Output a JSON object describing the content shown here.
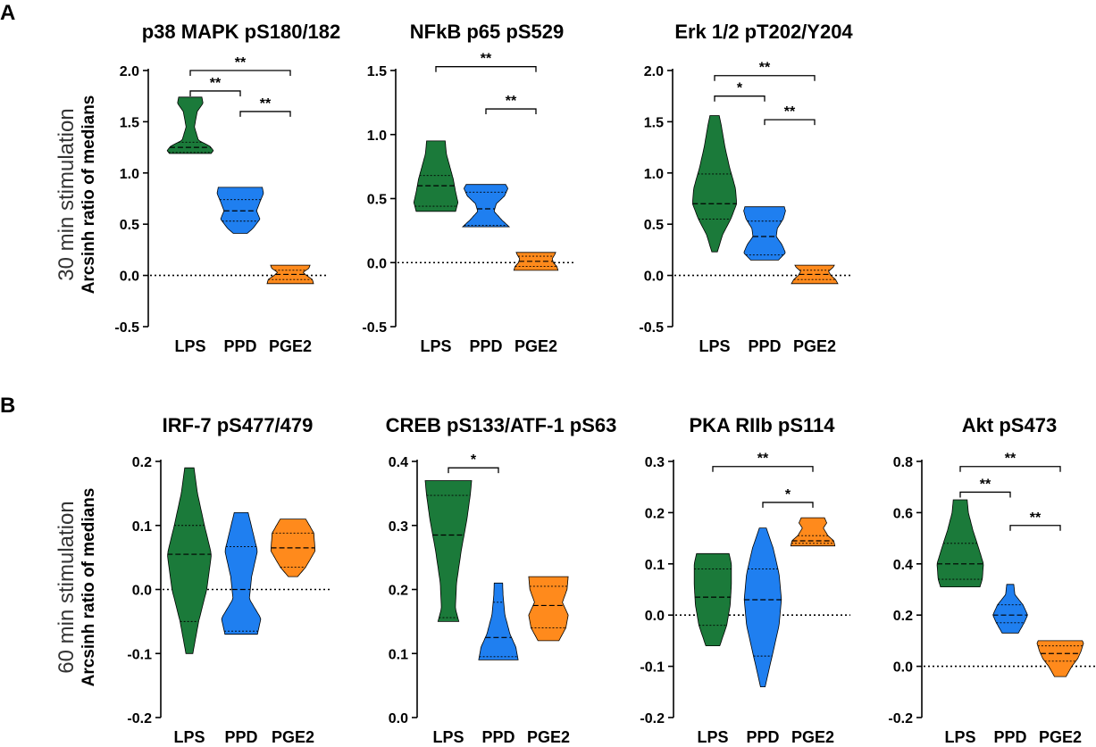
{
  "panel_labels": {
    "A": "A",
    "B": "B"
  },
  "row_labels": {
    "row1": "30 min stimulation",
    "row2": "60 min stimulation"
  },
  "y_axis_label": "Arcsinh ratio of medians",
  "colors": {
    "LPS": "#1b7a3a",
    "PPD": "#1f7ff0",
    "PGE2": "#ff8a1c"
  },
  "chart_data": [
    {
      "type": "violin",
      "title": "p38 MAPK pS180/182",
      "categories": [
        "LPS",
        "PPD",
        "PGE2"
      ],
      "ylim": [
        -0.5,
        2.0
      ],
      "yticks": [
        2.0,
        1.5,
        1.0,
        0.5,
        0.0,
        -0.5
      ],
      "ytick_labels": [
        "2.0",
        "1.5",
        "1.0",
        "0.5",
        "0.0",
        "-0.5"
      ],
      "reference_line": 0,
      "violins": [
        {
          "group": "LPS",
          "min": 1.19,
          "q1": 1.2,
          "median": 1.25,
          "q3": 1.3,
          "max": 1.74,
          "profile": [
            [
              1.19,
              0.9
            ],
            [
              1.22,
              1
            ],
            [
              1.26,
              0.85
            ],
            [
              1.32,
              0.35
            ],
            [
              1.45,
              0.18
            ],
            [
              1.6,
              0.3
            ],
            [
              1.68,
              0.55
            ],
            [
              1.74,
              0.5
            ]
          ]
        },
        {
          "group": "PPD",
          "min": 0.41,
          "q1": 0.53,
          "median": 0.63,
          "q3": 0.74,
          "max": 0.86,
          "profile": [
            [
              0.41,
              0.3
            ],
            [
              0.46,
              0.55
            ],
            [
              0.55,
              0.85
            ],
            [
              0.63,
              0.7
            ],
            [
              0.72,
              0.85
            ],
            [
              0.8,
              1
            ],
            [
              0.86,
              0.95
            ]
          ]
        },
        {
          "group": "PGE2",
          "min": -0.08,
          "q1": -0.04,
          "median": 0.01,
          "q3": 0.05,
          "max": 0.1,
          "profile": [
            [
              -0.08,
              1
            ],
            [
              -0.04,
              0.95
            ],
            [
              0.0,
              0.7
            ],
            [
              0.03,
              0.55
            ],
            [
              0.07,
              0.8
            ],
            [
              0.1,
              0.85
            ]
          ]
        }
      ],
      "significance": [
        {
          "from": "LPS",
          "to": "PGE2",
          "label": "**",
          "y": 2.0
        },
        {
          "from": "LPS",
          "to": "PPD",
          "label": "**",
          "y": 1.8
        },
        {
          "from": "PPD",
          "to": "PGE2",
          "label": "**",
          "y": 1.6
        }
      ]
    },
    {
      "type": "violin",
      "title": "NFkB p65 pS529",
      "categories": [
        "LPS",
        "PPD",
        "PGE2"
      ],
      "ylim": [
        -0.5,
        1.5
      ],
      "yticks": [
        1.5,
        1.0,
        0.5,
        0.0,
        -0.5
      ],
      "ytick_labels": [
        "1.5",
        "1.0",
        "0.5",
        "0.0",
        "-0.5"
      ],
      "reference_line": 0,
      "violins": [
        {
          "group": "LPS",
          "min": 0.4,
          "q1": 0.44,
          "median": 0.6,
          "q3": 0.68,
          "max": 0.95,
          "profile": [
            [
              0.4,
              0.85
            ],
            [
              0.47,
              0.95
            ],
            [
              0.55,
              0.85
            ],
            [
              0.65,
              0.75
            ],
            [
              0.75,
              0.6
            ],
            [
              0.85,
              0.45
            ],
            [
              0.95,
              0.4
            ]
          ]
        },
        {
          "group": "PPD",
          "min": 0.28,
          "q1": 0.29,
          "median": 0.42,
          "q3": 0.55,
          "max": 0.61,
          "profile": [
            [
              0.28,
              1
            ],
            [
              0.33,
              0.7
            ],
            [
              0.4,
              0.35
            ],
            [
              0.46,
              0.45
            ],
            [
              0.52,
              0.8
            ],
            [
              0.58,
              0.95
            ],
            [
              0.61,
              0.85
            ]
          ]
        },
        {
          "group": "PGE2",
          "min": -0.06,
          "q1": -0.03,
          "median": 0.01,
          "q3": 0.05,
          "max": 0.08,
          "profile": [
            [
              -0.06,
              0.95
            ],
            [
              -0.03,
              0.9
            ],
            [
              0.0,
              0.75
            ],
            [
              0.03,
              0.7
            ],
            [
              0.06,
              0.8
            ],
            [
              0.08,
              0.85
            ]
          ]
        }
      ],
      "significance": [
        {
          "from": "LPS",
          "to": "PGE2",
          "label": "**",
          "y": 1.53
        },
        {
          "from": "PPD",
          "to": "PGE2",
          "label": "**",
          "y": 1.2
        }
      ]
    },
    {
      "type": "violin",
      "title": "Erk 1/2 pT202/Y204",
      "categories": [
        "LPS",
        "PPD",
        "PGE2"
      ],
      "ylim": [
        -0.5,
        2.0
      ],
      "yticks": [
        2.0,
        1.5,
        1.0,
        0.5,
        0.0,
        -0.5
      ],
      "ytick_labels": [
        "2.0",
        "1.5",
        "1.0",
        "0.5",
        "0.0",
        "-0.5"
      ],
      "reference_line": 0,
      "violins": [
        {
          "group": "LPS",
          "min": 0.23,
          "q1": 0.55,
          "median": 0.7,
          "q3": 0.99,
          "max": 1.56,
          "profile": [
            [
              0.23,
              0.12
            ],
            [
              0.4,
              0.35
            ],
            [
              0.55,
              0.7
            ],
            [
              0.7,
              0.95
            ],
            [
              0.85,
              0.9
            ],
            [
              1.05,
              0.65
            ],
            [
              1.25,
              0.45
            ],
            [
              1.45,
              0.3
            ],
            [
              1.56,
              0.2
            ]
          ]
        },
        {
          "group": "PPD",
          "min": 0.15,
          "q1": 0.2,
          "median": 0.38,
          "q3": 0.53,
          "max": 0.67,
          "profile": [
            [
              0.15,
              0.6
            ],
            [
              0.22,
              0.9
            ],
            [
              0.3,
              0.75
            ],
            [
              0.38,
              0.5
            ],
            [
              0.46,
              0.55
            ],
            [
              0.55,
              0.8
            ],
            [
              0.63,
              0.9
            ],
            [
              0.67,
              0.85
            ]
          ]
        },
        {
          "group": "PGE2",
          "min": -0.08,
          "q1": -0.04,
          "median": 0.01,
          "q3": 0.05,
          "max": 0.1,
          "profile": [
            [
              -0.08,
              1
            ],
            [
              -0.04,
              0.9
            ],
            [
              0.0,
              0.7
            ],
            [
              0.04,
              0.6
            ],
            [
              0.08,
              0.8
            ],
            [
              0.1,
              0.85
            ]
          ]
        }
      ],
      "significance": [
        {
          "from": "LPS",
          "to": "PGE2",
          "label": "**",
          "y": 1.95
        },
        {
          "from": "LPS",
          "to": "PPD",
          "label": "*",
          "y": 1.75
        },
        {
          "from": "PPD",
          "to": "PGE2",
          "label": "**",
          "y": 1.52
        }
      ]
    },
    {
      "type": "violin",
      "title": "IRF-7 pS477/479",
      "categories": [
        "LPS",
        "PPD",
        "PGE2"
      ],
      "ylim": [
        -0.2,
        0.2
      ],
      "yticks": [
        0.2,
        0.1,
        0.0,
        -0.1,
        -0.2
      ],
      "ytick_labels": [
        "0.2",
        "0.1",
        "0.0",
        "-0.1",
        "-0.2"
      ],
      "reference_line": 0,
      "violins": [
        {
          "group": "LPS",
          "min": -0.1,
          "q1": -0.05,
          "median": 0.055,
          "q3": 0.1,
          "max": 0.19,
          "profile": [
            [
              -0.1,
              0.15
            ],
            [
              -0.05,
              0.4
            ],
            [
              0.0,
              0.75
            ],
            [
              0.055,
              0.95
            ],
            [
              0.1,
              0.65
            ],
            [
              0.15,
              0.35
            ],
            [
              0.19,
              0.2
            ]
          ]
        },
        {
          "group": "PPD",
          "min": -0.07,
          "q1": -0.065,
          "median": 0.0,
          "q3": 0.067,
          "max": 0.12,
          "profile": [
            [
              -0.07,
              0.7
            ],
            [
              -0.045,
              0.85
            ],
            [
              -0.015,
              0.35
            ],
            [
              0.02,
              0.45
            ],
            [
              0.06,
              0.7
            ],
            [
              0.09,
              0.5
            ],
            [
              0.12,
              0.3
            ]
          ]
        },
        {
          "group": "PGE2",
          "min": 0.02,
          "q1": 0.035,
          "median": 0.065,
          "q3": 0.088,
          "max": 0.11,
          "profile": [
            [
              0.02,
              0.2
            ],
            [
              0.035,
              0.55
            ],
            [
              0.06,
              0.95
            ],
            [
              0.088,
              0.9
            ],
            [
              0.11,
              0.55
            ]
          ]
        }
      ],
      "significance": []
    },
    {
      "type": "violin",
      "title": "CREB pS133/ATF-1 pS63",
      "categories": [
        "LPS",
        "PPD",
        "PGE2"
      ],
      "ylim": [
        0.0,
        0.4
      ],
      "yticks": [
        0.4,
        0.3,
        0.2,
        0.1,
        0.0
      ],
      "ytick_labels": [
        "0.4",
        "0.3",
        "0.2",
        "0.1",
        "0.0"
      ],
      "reference_line": null,
      "violins": [
        {
          "group": "LPS",
          "min": 0.15,
          "q1": 0.156,
          "median": 0.285,
          "q3": 0.347,
          "max": 0.37,
          "profile": [
            [
              0.15,
              0.45
            ],
            [
              0.17,
              0.3
            ],
            [
              0.21,
              0.35
            ],
            [
              0.26,
              0.55
            ],
            [
              0.31,
              0.8
            ],
            [
              0.35,
              0.95
            ],
            [
              0.37,
              1
            ]
          ]
        },
        {
          "group": "PPD",
          "min": 0.09,
          "q1": 0.095,
          "median": 0.125,
          "q3": 0.18,
          "max": 0.21,
          "profile": [
            [
              0.09,
              0.85
            ],
            [
              0.11,
              0.75
            ],
            [
              0.13,
              0.5
            ],
            [
              0.16,
              0.28
            ],
            [
              0.19,
              0.2
            ],
            [
              0.21,
              0.18
            ]
          ]
        },
        {
          "group": "PGE2",
          "min": 0.12,
          "q1": 0.14,
          "median": 0.175,
          "q3": 0.205,
          "max": 0.22,
          "profile": [
            [
              0.12,
              0.45
            ],
            [
              0.14,
              0.75
            ],
            [
              0.16,
              0.85
            ],
            [
              0.18,
              0.6
            ],
            [
              0.2,
              0.8
            ],
            [
              0.22,
              0.85
            ]
          ]
        }
      ],
      "significance": [
        {
          "from": "LPS",
          "to": "PPD",
          "label": "*",
          "y": 0.39
        }
      ]
    },
    {
      "type": "violin",
      "title": "PKA RIIb pS114",
      "categories": [
        "LPS",
        "PPD",
        "PGE2"
      ],
      "ylim": [
        -0.2,
        0.3
      ],
      "yticks": [
        0.3,
        0.2,
        0.1,
        0.0,
        -0.1,
        -0.2
      ],
      "ytick_labels": [
        "0.3",
        "0.2",
        "0.1",
        "0.0",
        "-0.1",
        "-0.2"
      ],
      "reference_line": 0,
      "violins": [
        {
          "group": "LPS",
          "min": -0.06,
          "q1": -0.02,
          "median": 0.035,
          "q3": 0.09,
          "max": 0.12,
          "profile": [
            [
              -0.06,
              0.3
            ],
            [
              -0.02,
              0.6
            ],
            [
              0.02,
              0.75
            ],
            [
              0.06,
              0.8
            ],
            [
              0.1,
              0.8
            ],
            [
              0.12,
              0.7
            ]
          ]
        },
        {
          "group": "PPD",
          "min": -0.14,
          "q1": -0.08,
          "median": 0.03,
          "q3": 0.09,
          "max": 0.17,
          "profile": [
            [
              -0.14,
              0.1
            ],
            [
              -0.08,
              0.4
            ],
            [
              -0.02,
              0.7
            ],
            [
              0.03,
              0.8
            ],
            [
              0.08,
              0.7
            ],
            [
              0.13,
              0.45
            ],
            [
              0.17,
              0.15
            ]
          ]
        },
        {
          "group": "PGE2",
          "min": 0.135,
          "q1": 0.14,
          "median": 0.145,
          "q3": 0.155,
          "max": 0.19,
          "profile": [
            [
              0.135,
              0.95
            ],
            [
              0.145,
              0.9
            ],
            [
              0.155,
              0.65
            ],
            [
              0.17,
              0.45
            ],
            [
              0.18,
              0.6
            ],
            [
              0.19,
              0.5
            ]
          ]
        }
      ],
      "significance": [
        {
          "from": "LPS",
          "to": "PGE2",
          "label": "**",
          "y": 0.29
        },
        {
          "from": "PPD",
          "to": "PGE2",
          "label": "*",
          "y": 0.22
        }
      ]
    },
    {
      "type": "violin",
      "title": "Akt pS473",
      "categories": [
        "LPS",
        "PPD",
        "PGE2"
      ],
      "ylim": [
        -0.2,
        0.8
      ],
      "yticks": [
        0.8,
        0.6,
        0.4,
        0.2,
        0.0,
        -0.2
      ],
      "ytick_labels": [
        "0.8",
        "0.6",
        "0.4",
        "0.2",
        "0.0",
        "-0.2"
      ],
      "reference_line": 0,
      "violins": [
        {
          "group": "LPS",
          "min": 0.31,
          "q1": 0.34,
          "median": 0.4,
          "q3": 0.48,
          "max": 0.65,
          "profile": [
            [
              0.31,
              0.85
            ],
            [
              0.34,
              0.95
            ],
            [
              0.4,
              1
            ],
            [
              0.46,
              0.8
            ],
            [
              0.53,
              0.55
            ],
            [
              0.6,
              0.35
            ],
            [
              0.65,
              0.3
            ]
          ]
        },
        {
          "group": "PPD",
          "min": 0.13,
          "q1": 0.17,
          "median": 0.2,
          "q3": 0.24,
          "max": 0.32,
          "profile": [
            [
              0.13,
              0.35
            ],
            [
              0.17,
              0.6
            ],
            [
              0.2,
              0.75
            ],
            [
              0.24,
              0.55
            ],
            [
              0.28,
              0.2
            ],
            [
              0.32,
              0.15
            ]
          ]
        },
        {
          "group": "PGE2",
          "min": -0.04,
          "q1": 0.02,
          "median": 0.05,
          "q3": 0.08,
          "max": 0.1,
          "profile": [
            [
              -0.04,
              0.25
            ],
            [
              0.0,
              0.5
            ],
            [
              0.03,
              0.75
            ],
            [
              0.06,
              0.9
            ],
            [
              0.09,
              1
            ],
            [
              0.1,
              0.95
            ]
          ]
        }
      ],
      "significance": [
        {
          "from": "LPS",
          "to": "PGE2",
          "label": "**",
          "y": 0.78
        },
        {
          "from": "LPS",
          "to": "PPD",
          "label": "**",
          "y": 0.68
        },
        {
          "from": "PPD",
          "to": "PGE2",
          "label": "**",
          "y": 0.55
        }
      ]
    }
  ]
}
